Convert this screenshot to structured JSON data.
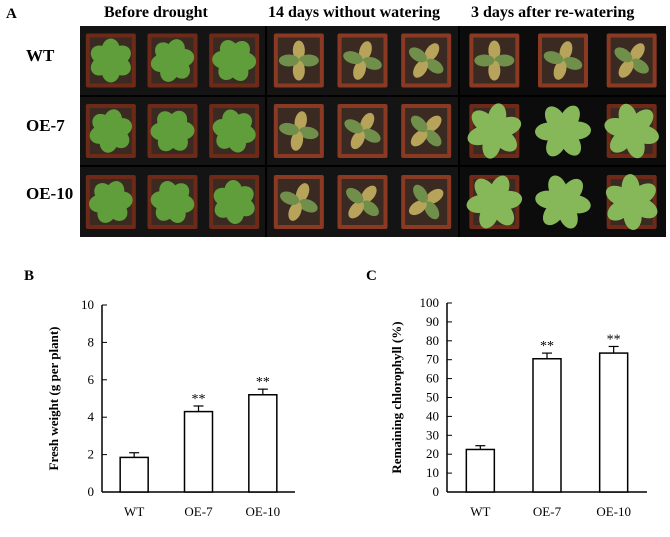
{
  "panels": {
    "a": {
      "letter": "A",
      "column_headers": [
        "Before drought",
        "14 days without watering",
        "3 days after re-watering"
      ],
      "row_headers": [
        "WT",
        "OE-7",
        "OE-10"
      ]
    },
    "b": {
      "letter": "B"
    },
    "c": {
      "letter": "C"
    }
  },
  "chart_data": [
    {
      "type": "bar",
      "categories": [
        "WT",
        "OE-7",
        "OE-10"
      ],
      "values": [
        1.85,
        4.3,
        5.2
      ],
      "errors": [
        0.25,
        0.3,
        0.3
      ],
      "significance": [
        "",
        "**",
        "**"
      ],
      "title": "",
      "xlabel": "",
      "ylabel": "Fresh weight (g per plant)",
      "ylim": [
        0,
        10
      ],
      "yticks": [
        0,
        2,
        4,
        6,
        8,
        10
      ],
      "grid": false
    },
    {
      "type": "bar",
      "categories": [
        "WT",
        "OE-7",
        "OE-10"
      ],
      "values": [
        22.5,
        70.5,
        73.5
      ],
      "errors": [
        2.0,
        3.0,
        3.5
      ],
      "significance": [
        "",
        "**",
        "**"
      ],
      "title": "",
      "xlabel": "",
      "ylabel": "Remaining chlorophyll (%)",
      "ylim": [
        0,
        100
      ],
      "yticks": [
        0,
        10,
        20,
        30,
        40,
        50,
        60,
        70,
        80,
        90,
        100
      ],
      "grid": false
    }
  ]
}
